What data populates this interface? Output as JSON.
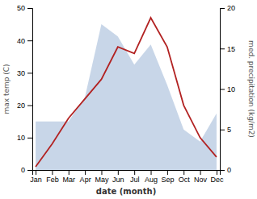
{
  "chart_data": {
    "type": "line",
    "xlabel": "date (month)",
    "ylabel": "max temp (C)",
    "y2label": "med. precipitation (kg/m2)",
    "categories": [
      "Jan",
      "Feb",
      "Mar",
      "Apr",
      "May",
      "Jun",
      "Jul",
      "Aug",
      "Sep",
      "Oct",
      "Nov",
      "Dec"
    ],
    "series": [
      {
        "type": "area",
        "axis": "y2",
        "color": "#b0c4de",
        "values": [
          6,
          6,
          6,
          9,
          18,
          16.5,
          13,
          15.5,
          10.5,
          5,
          3.5,
          7
        ]
      },
      {
        "type": "line",
        "color": "#b22222",
        "values": [
          1,
          8,
          16,
          22,
          28,
          38,
          36,
          47,
          38,
          20,
          10,
          4
        ]
      }
    ],
    "ylim": [
      0,
      50
    ],
    "yticks": [
      0,
      10,
      20,
      30,
      40,
      50
    ],
    "y2lim": [
      0,
      20
    ],
    "y2ticks": [
      0,
      5,
      10,
      15,
      20
    ],
    "grid": false
  }
}
